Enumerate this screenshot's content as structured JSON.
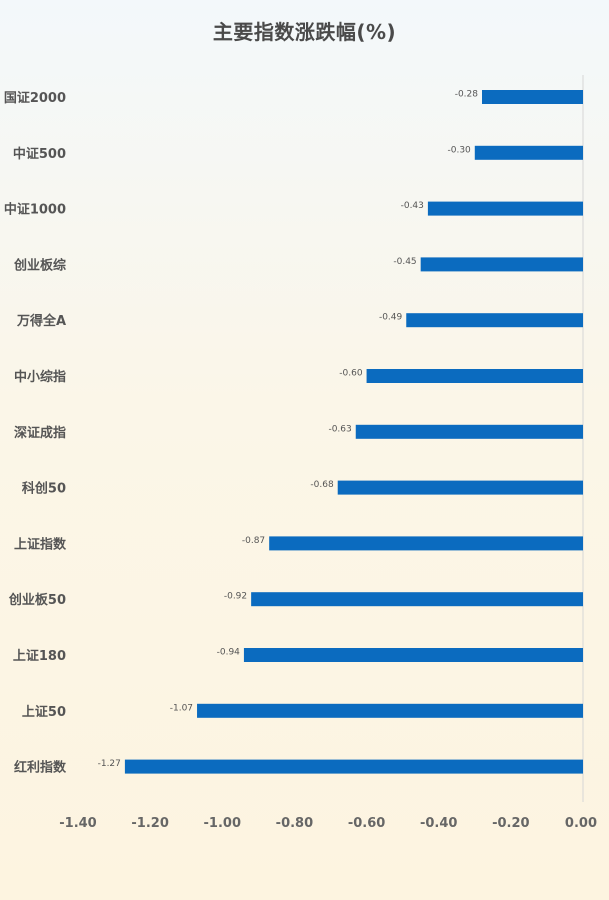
{
  "chart_data": {
    "type": "bar",
    "orientation": "horizontal",
    "title": "主要指数涨跌幅(%)",
    "categories": [
      "国证2000",
      "中证500",
      "中证1000",
      "创业板综",
      "万得全A",
      "中小综指",
      "深证成指",
      "科创50",
      "上证指数",
      "创业板50",
      "上证180",
      "上证50",
      "红利指数"
    ],
    "values": [
      -0.28,
      -0.3,
      -0.43,
      -0.45,
      -0.49,
      -0.6,
      -0.63,
      -0.68,
      -0.87,
      -0.92,
      -0.94,
      -1.07,
      -1.27
    ],
    "value_labels": [
      "-0.28",
      "-0.30",
      "-0.43",
      "-0.45",
      "-0.49",
      "-0.60",
      "-0.63",
      "-0.68",
      "-0.87",
      "-0.92",
      "-0.94",
      "-1.07",
      "-1.27"
    ],
    "xlim": [
      -1.4,
      0
    ],
    "x_ticks": [
      -1.4,
      -1.2,
      -1.0,
      -0.8,
      -0.6,
      -0.4,
      -0.2,
      0
    ],
    "x_tick_labels": [
      "-1.40",
      "-1.20",
      "-1.00",
      "-0.80",
      "-0.60",
      "-0.40",
      "-0.20",
      "0.00"
    ],
    "bar_color": "#0b6bbf",
    "grid": false,
    "legend": "none"
  }
}
